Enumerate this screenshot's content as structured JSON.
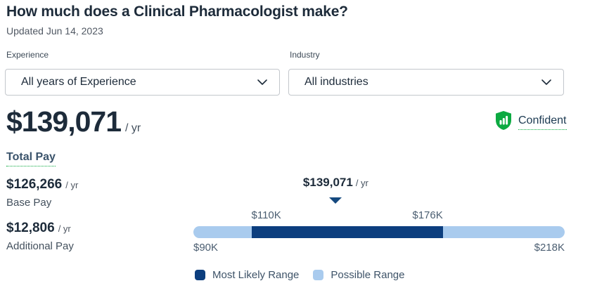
{
  "header": {
    "title": "How much does a Clinical Pharmacologist make?",
    "updated": "Updated Jun 14, 2023"
  },
  "filters": {
    "experience": {
      "label": "Experience",
      "value": "All years of Experience"
    },
    "industry": {
      "label": "Industry",
      "value": "All industries"
    }
  },
  "summary": {
    "total_pay_value": "$139,071",
    "total_pay_unit": "/ yr",
    "total_pay_label": "Total Pay",
    "confidence_label": "Confident",
    "base_pay_value": "$126,266",
    "base_pay_unit": "/ yr",
    "base_pay_label": "Base Pay",
    "additional_pay_value": "$12,806",
    "additional_pay_unit": "/ yr",
    "additional_pay_label": "Additional Pay"
  },
  "chart_data": {
    "type": "range-bar",
    "unit": "USD thousands per year",
    "min": 90,
    "max": 218,
    "likely_min": 110,
    "likely_max": 176,
    "estimate": 139.071,
    "labels": {
      "estimate": "$139,071",
      "estimate_unit": "/ yr",
      "likely_min": "$110K",
      "likely_max": "$176K",
      "min": "$90K",
      "max": "$218K"
    },
    "legend": [
      {
        "label": "Most Likely Range",
        "color": "#0c3e7e"
      },
      {
        "label": "Possible Range",
        "color": "#a9cbee"
      }
    ],
    "colors": {
      "likely": "#0c3e7e",
      "possible": "#a9cbee"
    }
  },
  "colors": {
    "accent_green": "#0caa41",
    "navy": "#0c3e7e",
    "light_blue": "#a9cbee",
    "text_dark": "#1d2b3a",
    "text_gray": "#505863"
  },
  "icons": {
    "chevron_down": "chevron-down-icon",
    "confidence_shield": "shield-confidence-icon"
  }
}
